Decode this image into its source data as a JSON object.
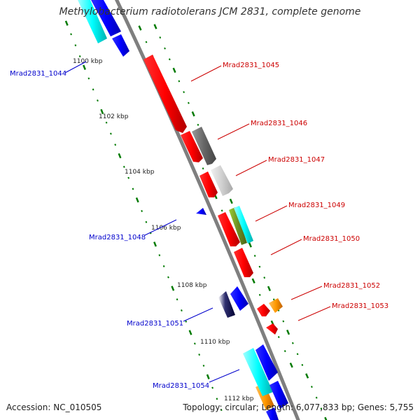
{
  "title": "Methylobacterium radiotolerans JCM 2831, complete genome",
  "footer": {
    "accession": "Accession: NC_010505",
    "stats": "Topology: circular; Length: 6,077,833 bp; Genes: 5,755"
  },
  "colors": {
    "backbone": "#7f7f7f",
    "tick": "#007a00",
    "forward_label": "#cc0000",
    "reverse_label": "#0000cc",
    "red": "#ee0000",
    "blue": "#0000ee",
    "cyan": "#00eeee",
    "gray": "#666666",
    "lightgray": "#cccccc",
    "olive": "#6b8e23",
    "navy": "#000050",
    "orange": "#ff9900"
  },
  "scale_labels": [
    "1100 kbp",
    "1102 kbp",
    "1104 kbp",
    "1106 kbp",
    "1108 kbp",
    "1110 kbp",
    "1112 kbp"
  ],
  "gene_labels": {
    "forward": [
      "Mrad2831_1045",
      "Mrad2831_1046",
      "Mrad2831_1047",
      "Mrad2831_1049",
      "Mrad2831_1050",
      "Mrad2831_1052",
      "Mrad2831_1053"
    ],
    "reverse": [
      "Mrad2831_1044",
      "Mrad2831_1048",
      "Mrad2831_1051",
      "Mrad2831_1054"
    ]
  }
}
